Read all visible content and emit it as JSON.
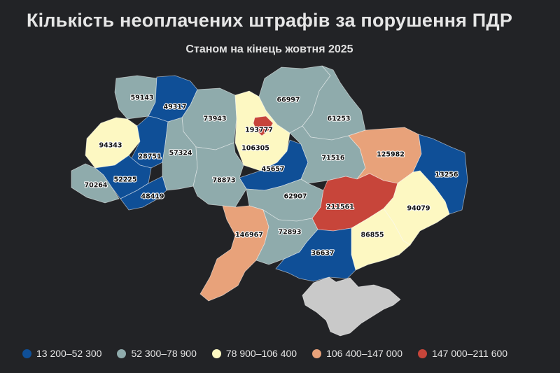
{
  "title": "Кількість неоплачених штрафів за порушення ПДР",
  "subtitle": "Станом на кінець жовтня 2025",
  "colors": {
    "c1": "#0f4f97",
    "c2": "#8fabac",
    "c3": "#fdf8c2",
    "c4": "#e8a27a",
    "c5": "#c7453a",
    "nodata": "#c9c9c9",
    "background": "#222326"
  },
  "legend": [
    {
      "label": "13 200–52 300",
      "color": "#0f4f97"
    },
    {
      "label": "52 300–78 900",
      "color": "#8fabac"
    },
    {
      "label": "78 900–106 400",
      "color": "#fdf8c2"
    },
    {
      "label": "106 400–147 000",
      "color": "#e8a27a"
    },
    {
      "label": "147 000–211 600",
      "color": "#c7453a"
    }
  ],
  "regions": [
    {
      "id": "volyn",
      "value": "59143",
      "class": 2
    },
    {
      "id": "rivne",
      "value": "49317",
      "class": 1
    },
    {
      "id": "zhytomyr",
      "value": "73943",
      "class": 2
    },
    {
      "id": "kyiv-oblast",
      "value": "106305",
      "class": 3
    },
    {
      "id": "kyiv-city",
      "value": "193777",
      "class": 5
    },
    {
      "id": "chernihiv",
      "value": "66997",
      "class": 2
    },
    {
      "id": "sumy",
      "value": "61253",
      "class": 2
    },
    {
      "id": "lviv",
      "value": "94343",
      "class": 3
    },
    {
      "id": "ternopil",
      "value": "28751",
      "class": 1
    },
    {
      "id": "khmelnytskyi",
      "value": "57324",
      "class": 2
    },
    {
      "id": "cherkasy",
      "value": "45657",
      "class": 1
    },
    {
      "id": "poltava",
      "value": "71516",
      "class": 2
    },
    {
      "id": "kharkiv",
      "value": "125982",
      "class": 4
    },
    {
      "id": "luhansk",
      "value": "13256",
      "class": 1
    },
    {
      "id": "zakarpattia",
      "value": "70264",
      "class": 2
    },
    {
      "id": "ivano-frankivsk",
      "value": "52225",
      "class": 1
    },
    {
      "id": "chernivtsi",
      "value": "48419",
      "class": 1
    },
    {
      "id": "vinnytsia",
      "value": "78873",
      "class": 2
    },
    {
      "id": "kirovohrad",
      "value": "62907",
      "class": 2
    },
    {
      "id": "dnipropetrovsk",
      "value": "211561",
      "class": 5
    },
    {
      "id": "donetsk",
      "value": "94079",
      "class": 3
    },
    {
      "id": "odesa",
      "value": "146967",
      "class": 4
    },
    {
      "id": "mykolaiv",
      "value": "72893",
      "class": 2
    },
    {
      "id": "zaporizhzhia",
      "value": "86855",
      "class": 3
    },
    {
      "id": "kherson",
      "value": "36637",
      "class": 1
    },
    {
      "id": "crimea",
      "value": "",
      "class": 0
    }
  ]
}
